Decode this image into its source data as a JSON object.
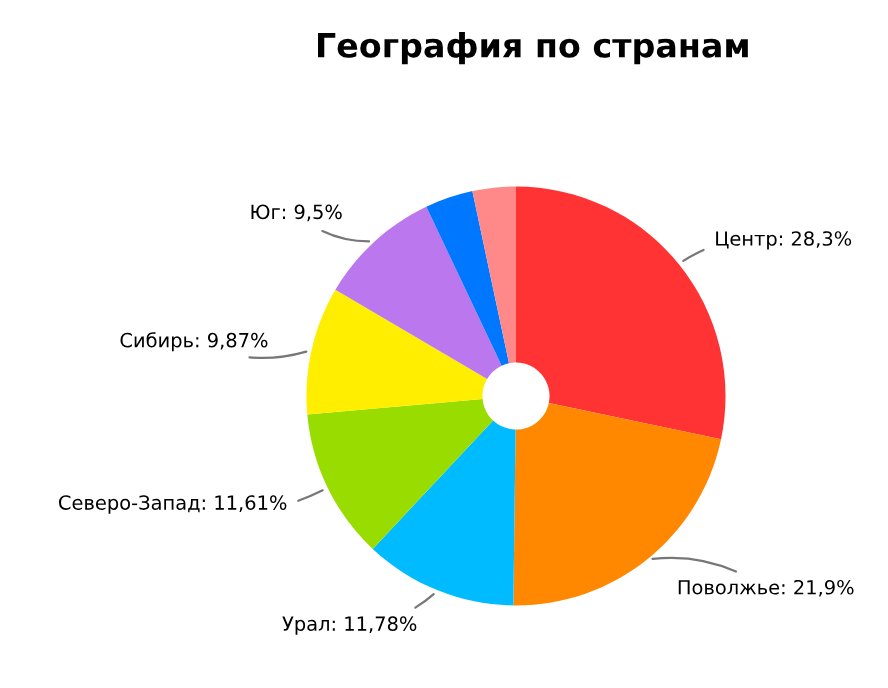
{
  "chart_data": {
    "type": "donut",
    "title": "География по странам",
    "categories": [
      "Центр",
      "Поволжье",
      "Урал",
      "Северо-Запад",
      "Сибирь",
      "Юг",
      null,
      null
    ],
    "values": [
      28.3,
      21.9,
      11.78,
      11.61,
      9.87,
      9.5,
      3.7,
      3.34
    ],
    "value_labels": [
      "28,3%",
      "21,9%",
      "11,78%",
      "11,61%",
      "9,87%",
      "9,5%",
      null,
      null
    ],
    "colors": [
      "#ff3333",
      "#ff8800",
      "#00bbff",
      "#99dd00",
      "#ffee00",
      "#bb77ee",
      "#0077ff",
      "#ff8888"
    ],
    "legend": false
  }
}
